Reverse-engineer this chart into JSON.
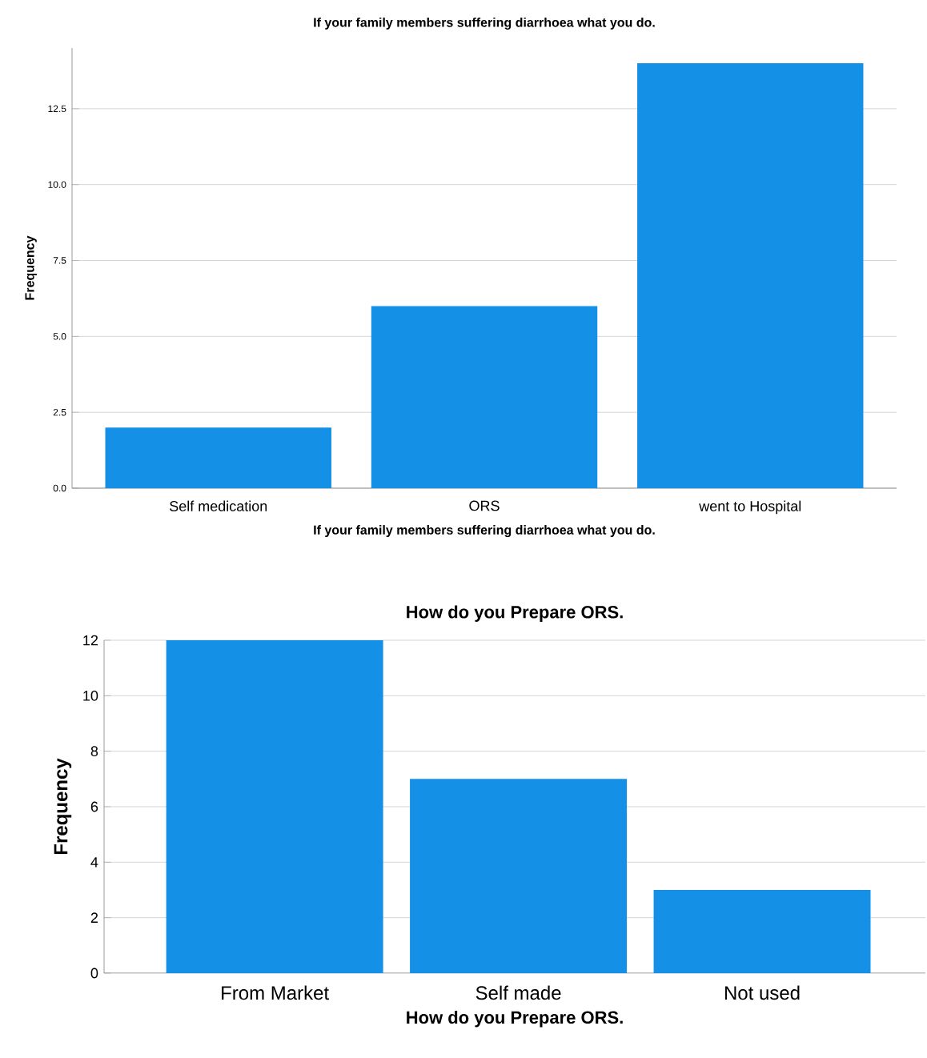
{
  "chart_data": [
    {
      "type": "bar",
      "title": "If your family members suffering  diarrhoea what you do.",
      "xlabel": "If your family members suffering  diarrhoea what you do.",
      "ylabel": "Frequency",
      "categories": [
        "Self medication",
        "ORS",
        "went to Hospital"
      ],
      "values": [
        2,
        6,
        14
      ],
      "color": "#1490e6",
      "ylim": [
        0,
        14.5
      ],
      "yticks": [
        {
          "value": 0,
          "label": "0.0"
        },
        {
          "value": 2.5,
          "label": "2.5"
        },
        {
          "value": 5,
          "label": "5.0"
        },
        {
          "value": 7.5,
          "label": "7.5"
        },
        {
          "value": 10,
          "label": "10.0"
        },
        {
          "value": 12.5,
          "label": "12.5"
        }
      ],
      "grid": "y"
    },
    {
      "type": "bar",
      "title": "How do you Prepare ORS.",
      "xlabel": "How do you Prepare ORS.",
      "ylabel": "Frequency",
      "categories": [
        "From Market",
        "Self made",
        "Not used"
      ],
      "values": [
        12,
        7,
        3
      ],
      "color": "#1490e6",
      "ylim": [
        0,
        12
      ],
      "yticks": [
        0,
        2,
        4,
        6,
        8,
        10,
        12
      ],
      "grid": "y"
    }
  ]
}
